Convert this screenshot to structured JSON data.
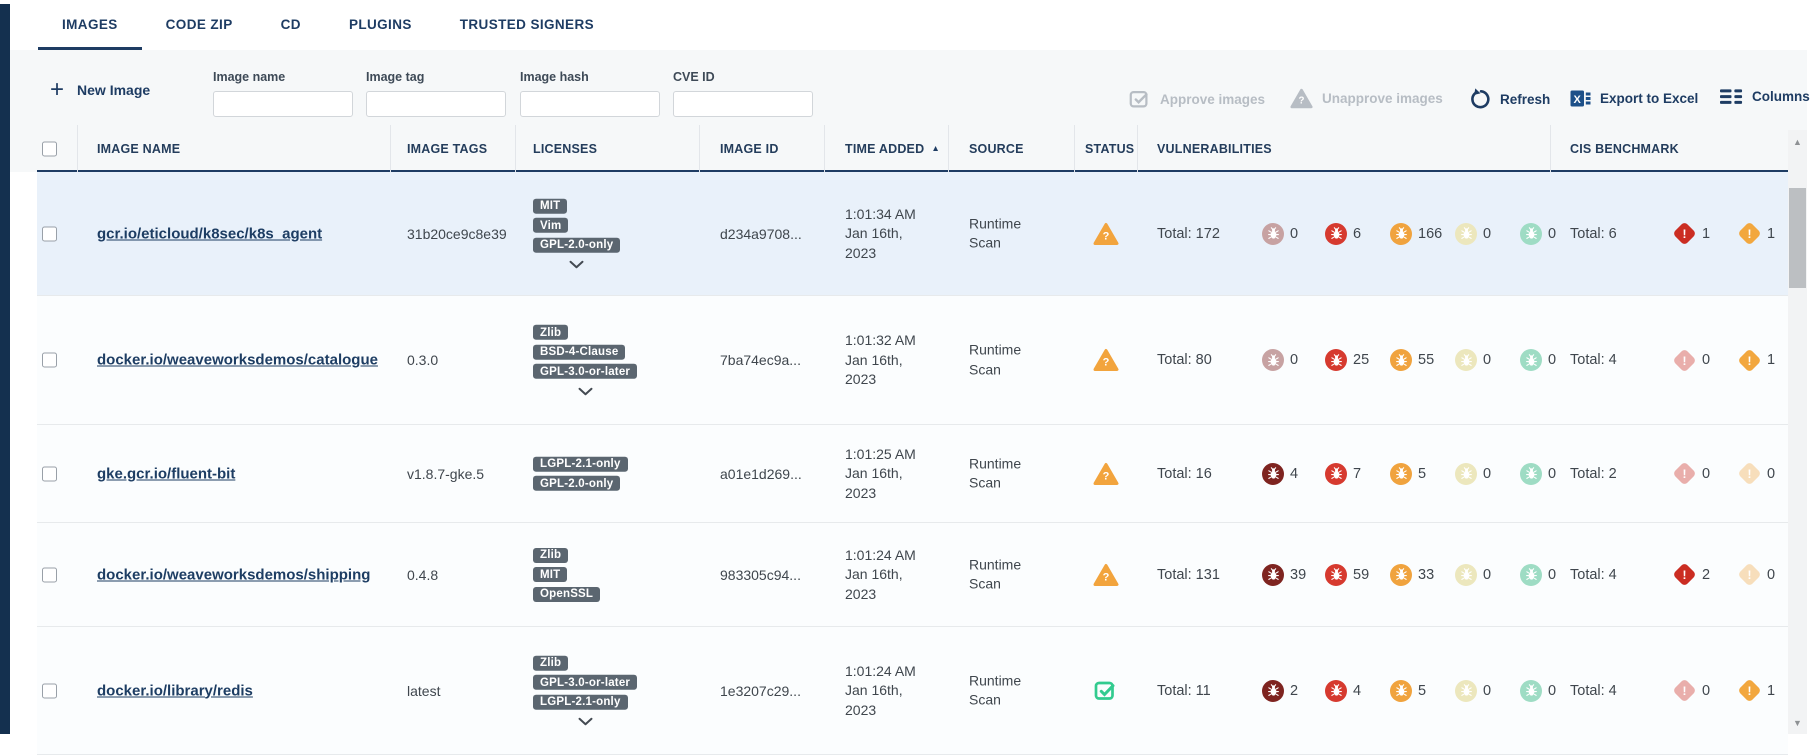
{
  "tabs": {
    "items": [
      {
        "label": "IMAGES",
        "active": true
      },
      {
        "label": "CODE ZIP",
        "active": false
      },
      {
        "label": "CD",
        "active": false
      },
      {
        "label": "PLUGINS",
        "active": false
      },
      {
        "label": "TRUSTED SIGNERS",
        "active": false
      }
    ]
  },
  "toolbar": {
    "new_image_label": "New Image",
    "filters": [
      {
        "label": "Image name",
        "value": ""
      },
      {
        "label": "Image tag",
        "value": ""
      },
      {
        "label": "Image hash",
        "value": ""
      },
      {
        "label": "CVE ID",
        "value": ""
      }
    ],
    "actions": {
      "approve": "Approve images",
      "unapprove": "Unapprove images",
      "refresh": "Refresh",
      "export": "Export to Excel",
      "columns": "Columns"
    }
  },
  "table": {
    "headers": {
      "name": "IMAGE NAME",
      "tags": "IMAGE TAGS",
      "licenses": "LICENSES",
      "id": "IMAGE ID",
      "time": "TIME ADDED",
      "source": "SOURCE",
      "status": "STATUS",
      "vuln": "VULNERABILITIES",
      "cis": "CIS BENCHMARK"
    },
    "sorted_by": "TIME ADDED",
    "sort_direction": "asc",
    "total_label": "Total:",
    "severity_levels": [
      "critical",
      "high",
      "medium",
      "low",
      "negligible"
    ],
    "rows": [
      {
        "name": "gcr.io/eticloud/k8sec/k8s_agent",
        "tag": "31b20ce9c8e39",
        "licenses": [
          "MIT",
          "Vim",
          "GPL-2.0-only"
        ],
        "more_licenses": true,
        "image_id": "d234a9708...",
        "time": [
          "1:01:34 AM",
          "Jan 16th,",
          "2023"
        ],
        "source": "Runtime Scan",
        "status": "warning",
        "vulnerabilities": {
          "total": 172,
          "counts": [
            0,
            6,
            166,
            0,
            0
          ]
        },
        "cis": {
          "total": 6,
          "critical": 1,
          "warning": 1
        }
      },
      {
        "name": "docker.io/weaveworksdemos/catalogue",
        "tag": "0.3.0",
        "licenses": [
          "Zlib",
          "BSD-4-Clause",
          "GPL-3.0-or-later"
        ],
        "more_licenses": true,
        "image_id": "7ba74ec9a...",
        "time": [
          "1:01:32 AM",
          "Jan 16th,",
          "2023"
        ],
        "source": "Runtime Scan",
        "status": "warning",
        "vulnerabilities": {
          "total": 80,
          "counts": [
            0,
            25,
            55,
            0,
            0
          ]
        },
        "cis": {
          "total": 4,
          "critical": 0,
          "warning": 1
        }
      },
      {
        "name": "gke.gcr.io/fluent-bit",
        "tag": "v1.8.7-gke.5",
        "licenses": [
          "LGPL-2.1-only",
          "GPL-2.0-only"
        ],
        "more_licenses": false,
        "image_id": "a01e1d269...",
        "time": [
          "1:01:25 AM",
          "Jan 16th,",
          "2023"
        ],
        "source": "Runtime Scan",
        "status": "warning",
        "vulnerabilities": {
          "total": 16,
          "counts": [
            4,
            7,
            5,
            0,
            0
          ]
        },
        "cis": {
          "total": 2,
          "critical": 0,
          "warning": 0
        }
      },
      {
        "name": "docker.io/weaveworksdemos/shipping",
        "tag": "0.4.8",
        "licenses": [
          "Zlib",
          "MIT",
          "OpenSSL"
        ],
        "more_licenses": false,
        "image_id": "983305c94...",
        "time": [
          "1:01:24 AM",
          "Jan 16th,",
          "2023"
        ],
        "source": "Runtime Scan",
        "status": "warning",
        "vulnerabilities": {
          "total": 131,
          "counts": [
            39,
            59,
            33,
            0,
            0
          ]
        },
        "cis": {
          "total": 4,
          "critical": 2,
          "warning": 0
        }
      },
      {
        "name": "docker.io/library/redis",
        "tag": "latest",
        "licenses": [
          "Zlib",
          "GPL-3.0-or-later",
          "LGPL-2.1-only"
        ],
        "more_licenses": true,
        "image_id": "1e3207c29...",
        "time": [
          "1:01:24 AM",
          "Jan 16th,",
          "2023"
        ],
        "source": "Runtime Scan",
        "status": "approved",
        "vulnerabilities": {
          "total": 11,
          "counts": [
            2,
            4,
            5,
            0,
            0
          ]
        },
        "cis": {
          "total": 4,
          "critical": 0,
          "warning": 1
        }
      }
    ]
  },
  "colors": {
    "accent_navy": "#1e3c63",
    "selected_row_bg": "#e9f1fa",
    "license_pill_bg": "#5b6670",
    "status_warning": "#f2a43d",
    "status_approved": "#32cb8f",
    "severity_active": {
      "critical": "#7e2420",
      "high": "#d63a2f",
      "medium": "#f0a33e",
      "low": "#ddd06a",
      "negligible": "#6fcfae"
    },
    "severity_faded": {
      "critical": "#c7a2a2",
      "high": "#e8b0aa",
      "medium": "#f5d7a8",
      "low": "#ece7bd",
      "negligible": "#9edcc4"
    },
    "cis_active": {
      "critical": "#cb2d22",
      "warning": "#f2a73e"
    },
    "cis_faded": {
      "critical": "#e9aeab",
      "warning": "#f7debb"
    }
  }
}
